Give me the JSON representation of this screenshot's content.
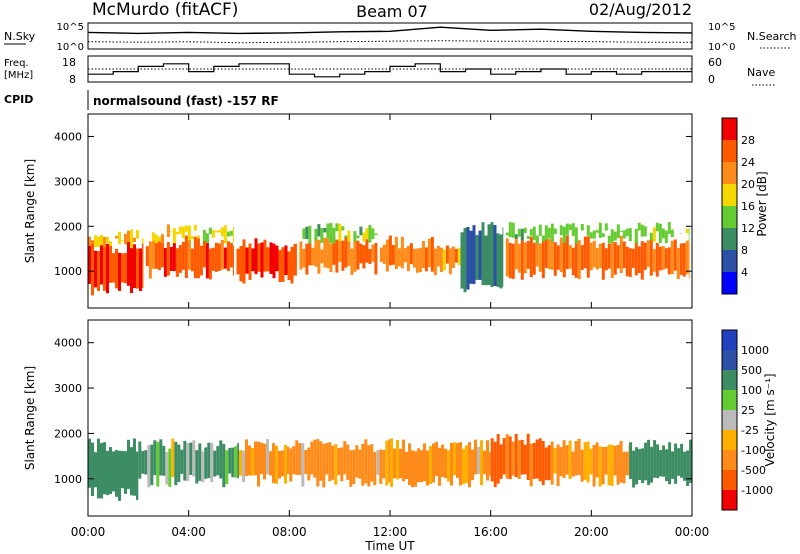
{
  "header": {
    "station": "McMurdo (fitACF)",
    "beam": "Beam 07",
    "date": "02/Aug/2012"
  },
  "noise_panel": {
    "left_label": "N.Sky",
    "right_label": "N.Search",
    "left_ticks": [
      "10^5",
      "10^0"
    ],
    "right_ticks": [
      "10^5",
      "10^0"
    ]
  },
  "freq_panel": {
    "left_label_1": "Freq.",
    "left_label_2": "[MHz]",
    "right_label": "Nave",
    "left_ticks": [
      "18",
      "8"
    ],
    "right_ticks": [
      "60",
      "0"
    ]
  },
  "cpid": {
    "label": "CPID",
    "text": "normalsound (fast) -157 RF"
  },
  "power_panel": {
    "ylabel": "Slant Range [km]",
    "yticks": [
      "1000",
      "2000",
      "3000",
      "4000"
    ],
    "colorbar_label": "Power [dB]",
    "colorbar_ticks": [
      "4",
      "8",
      "12",
      "16",
      "20",
      "24",
      "28"
    ],
    "colors": [
      "#0000ff",
      "#2c4fa8",
      "#3c8c64",
      "#66cc33",
      "#f5d800",
      "#ff8c1a",
      "#ff5a00",
      "#f00000"
    ]
  },
  "velocity_panel": {
    "ylabel": "Slant Range [km]",
    "yticks": [
      "1000",
      "2000",
      "3000",
      "4000"
    ],
    "colorbar_label": "Velocity [m s⁻¹]",
    "colorbar_ticks": [
      "-1000",
      "-500",
      "-100",
      "-25",
      "25",
      "100",
      "500",
      "1000"
    ],
    "colors": [
      "#f00000",
      "#ff5a00",
      "#ff8c1a",
      "#ffb000",
      "#bbbbbb",
      "#66cc33",
      "#3c8c64",
      "#2c4fa8",
      "#2040c0"
    ]
  },
  "xaxis": {
    "ticks": [
      "00:00",
      "04:00",
      "08:00",
      "12:00",
      "16:00",
      "20:00",
      "00:00"
    ],
    "label": "Time UT"
  },
  "chart_data": [
    {
      "type": "line",
      "name": "noise",
      "x": [
        0,
        2,
        4,
        6,
        8,
        10,
        12,
        14,
        16,
        18,
        20,
        22,
        24
      ],
      "series": [
        {
          "values": [
            3.2,
            3.0,
            3.2,
            3.0,
            3.1,
            3.3,
            3.4,
            4.2,
            3.6,
            3.8,
            3.4,
            3.2,
            3.1
          ]
        },
        {
          "values": [
            1.4,
            1.3,
            1.4,
            1.2,
            1.3,
            1.4,
            1.5,
            1.6,
            1.5,
            1.5,
            1.4,
            1.3,
            1.3
          ]
        }
      ]
    },
    {
      "type": "line",
      "name": "frequency and nave",
      "x": [
        0,
        1,
        2,
        3,
        4,
        5,
        6,
        7,
        8,
        9,
        10,
        11,
        12,
        13,
        14,
        15,
        16,
        17,
        18,
        19,
        20,
        21,
        22,
        23,
        24
      ],
      "series": [
        {
          "values": [
            11,
            12,
            14,
            15,
            12,
            14,
            15,
            15,
            11,
            10,
            11,
            12,
            14,
            15,
            12,
            13,
            11,
            12,
            13,
            11,
            12,
            11,
            12,
            12,
            13
          ]
        },
        {
          "values": [
            30,
            30,
            30,
            30,
            30,
            30,
            30,
            30,
            30,
            30,
            30,
            30,
            30,
            30,
            30,
            30,
            30,
            30,
            30,
            30,
            30,
            30,
            30,
            30,
            30
          ]
        }
      ]
    },
    {
      "type": "heatmap",
      "name": "Power",
      "x_range": [
        0,
        24
      ],
      "y_range": [
        180,
        4500
      ],
      "value_range": [
        0,
        30
      ],
      "blocks": [
        {
          "t0": 0.0,
          "t1": 2.2,
          "r0": 550,
          "r1": 1600,
          "v": 28
        },
        {
          "t0": 0.0,
          "t1": 2.2,
          "r0": 1600,
          "r1": 1850,
          "v": 20
        },
        {
          "t0": 2.3,
          "t1": 5.8,
          "r0": 900,
          "r1": 1700,
          "v": 26
        },
        {
          "t0": 2.3,
          "t1": 5.8,
          "r0": 1700,
          "r1": 1950,
          "v": 18
        },
        {
          "t0": 5.9,
          "t1": 8.3,
          "r0": 800,
          "r1": 1650,
          "v": 27
        },
        {
          "t0": 8.4,
          "t1": 11.5,
          "r0": 1000,
          "r1": 1700,
          "v": 24
        },
        {
          "t0": 8.4,
          "t1": 11.5,
          "r0": 1700,
          "r1": 2000,
          "v": 14
        },
        {
          "t0": 11.6,
          "t1": 14.8,
          "r0": 1000,
          "r1": 1700,
          "v": 22
        },
        {
          "t0": 14.8,
          "t1": 16.5,
          "r0": 600,
          "r1": 2000,
          "v": 8
        },
        {
          "t0": 16.6,
          "t1": 23.9,
          "r0": 900,
          "r1": 1700,
          "v": 25
        },
        {
          "t0": 16.6,
          "t1": 23.9,
          "r0": 1700,
          "r1": 2000,
          "v": 14
        }
      ]
    },
    {
      "type": "heatmap",
      "name": "Velocity",
      "x_range": [
        0,
        24
      ],
      "y_range": [
        180,
        4500
      ],
      "value_range": [
        -1000,
        1000
      ],
      "blocks": [
        {
          "t0": 0.0,
          "t1": 2.0,
          "r0": 600,
          "r1": 1800,
          "v": 300
        },
        {
          "t0": 2.0,
          "t1": 6.0,
          "r0": 900,
          "r1": 1800,
          "v": 150
        },
        {
          "t0": 6.0,
          "t1": 8.0,
          "r0": 900,
          "r1": 1800,
          "v": -150
        },
        {
          "t0": 8.0,
          "t1": 12.0,
          "r0": 900,
          "r1": 1800,
          "v": -200
        },
        {
          "t0": 12.0,
          "t1": 16.0,
          "r0": 900,
          "r1": 1800,
          "v": -180
        },
        {
          "t0": 16.0,
          "t1": 18.5,
          "r0": 900,
          "r1": 1900,
          "v": -600
        },
        {
          "t0": 18.5,
          "t1": 21.5,
          "r0": 900,
          "r1": 1800,
          "v": -200
        },
        {
          "t0": 21.5,
          "t1": 24.0,
          "r0": 900,
          "r1": 1800,
          "v": 300
        }
      ]
    }
  ]
}
